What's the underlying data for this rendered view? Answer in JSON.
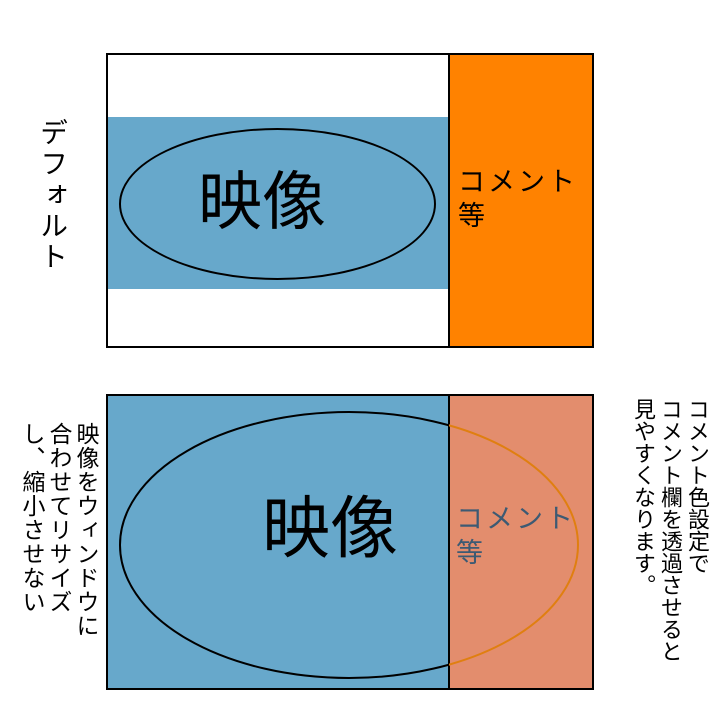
{
  "default_section": {
    "side_label": "デフォルト",
    "video_label": "映像",
    "comment_label": "コメント\n等",
    "colors": {
      "video": "#67a8cb",
      "comment": "#ff8200",
      "frame": "#ffffff"
    }
  },
  "alternative_section": {
    "video_label": "映像",
    "comment_label": "コメント\n等",
    "left_note": "映像をウィンドウに\n合わせてリサイズ\nし、縮小させない",
    "right_note": "コメント色設定で\nコメント欄を透過させると\n見やすくなります。",
    "colors": {
      "video": "#67a8cb",
      "comment": "#e38d6d",
      "ellipse_inside_comment": "#e07f10",
      "comment_text": "#3d5a73"
    }
  }
}
